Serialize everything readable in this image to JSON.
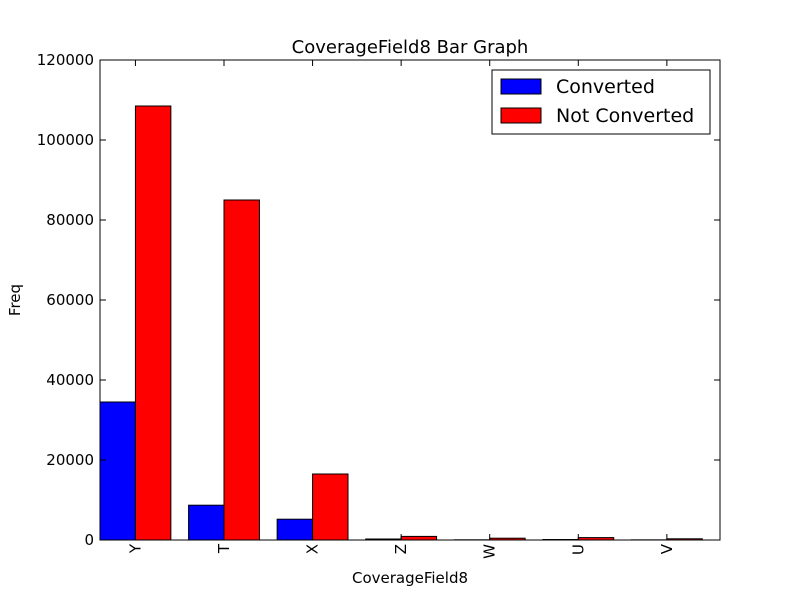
{
  "chart_data": {
    "type": "bar",
    "title": "CoverageField8 Bar Graph",
    "xlabel": "CoverageField8",
    "ylabel": "Freq",
    "categories": [
      "Y",
      "T",
      "X",
      "Z",
      "W",
      "U",
      "V"
    ],
    "series": [
      {
        "name": "Converted",
        "color": "#0000ff",
        "values": [
          34500,
          8700,
          5200,
          250,
          50,
          120,
          40
        ]
      },
      {
        "name": "Not Converted",
        "color": "#ff0000",
        "values": [
          108500,
          85000,
          16500,
          900,
          450,
          600,
          300
        ]
      }
    ],
    "ylim": [
      0,
      120000
    ],
    "yticks": [
      0,
      20000,
      40000,
      60000,
      80000,
      100000,
      120000
    ],
    "grid": false,
    "legend_position": "top-right"
  }
}
